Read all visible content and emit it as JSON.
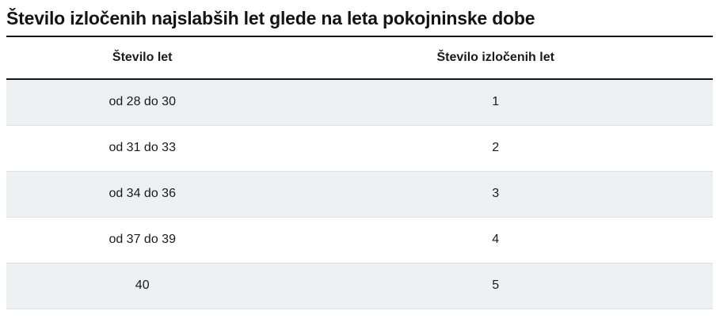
{
  "title": "Število izločenih najslabših let glede na leta pokojninske dobe",
  "table": {
    "columns": [
      "Število let",
      "Število izločenih let"
    ],
    "rows": [
      {
        "years": "od 28 do 30",
        "excluded": "1"
      },
      {
        "years": "od 31 do 33",
        "excluded": "2"
      },
      {
        "years": "od 34 do 36",
        "excluded": "3"
      },
      {
        "years": "od 37 do 39",
        "excluded": "4"
      },
      {
        "years": "40",
        "excluded": "5"
      }
    ]
  },
  "colors": {
    "text-color": "#1a1a1a",
    "rule-color": "#141414",
    "stripe-color": "#ecf0f3",
    "row-border-color": "#dde2e6",
    "bg-color": "#ffffff"
  }
}
